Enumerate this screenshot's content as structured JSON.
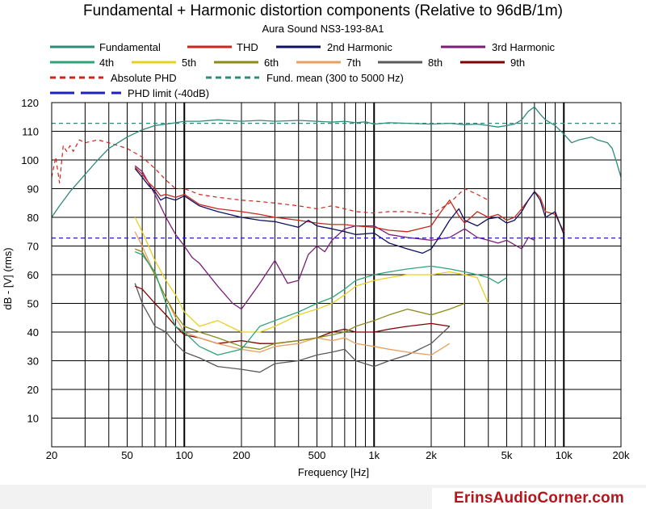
{
  "chart_data": {
    "type": "line",
    "title": "Fundamental + Harmonic distortion components (Relative to 96dB/1m)",
    "subtitle": "Aura Sound NS3-193-8A1",
    "xlabel": "Frequency [Hz]",
    "ylabel": "dB - [V]  (rms)",
    "x_scale": "log",
    "xlim": [
      20,
      20000
    ],
    "ylim": [
      0,
      120
    ],
    "x_ticks": [
      {
        "value": 20,
        "label": "20"
      },
      {
        "value": 50,
        "label": "50"
      },
      {
        "value": 100,
        "label": "100"
      },
      {
        "value": 200,
        "label": "200"
      },
      {
        "value": 500,
        "label": "500"
      },
      {
        "value": 1000,
        "label": "1k"
      },
      {
        "value": 2000,
        "label": "2k"
      },
      {
        "value": 5000,
        "label": "5k"
      },
      {
        "value": 10000,
        "label": "10k"
      },
      {
        "value": 20000,
        "label": "20k"
      }
    ],
    "y_ticks": [
      {
        "value": 10,
        "label": "10"
      },
      {
        "value": 20,
        "label": "20"
      },
      {
        "value": 30,
        "label": "30"
      },
      {
        "value": 40,
        "label": "40"
      },
      {
        "value": 50,
        "label": "50"
      },
      {
        "value": 60,
        "label": "60"
      },
      {
        "value": 70,
        "label": "70"
      },
      {
        "value": 80,
        "label": "80"
      },
      {
        "value": 90,
        "label": "90"
      },
      {
        "value": 100,
        "label": "100"
      },
      {
        "value": 110,
        "label": "110"
      },
      {
        "value": 120,
        "label": "120"
      }
    ],
    "grid": true,
    "legend_placement": "top",
    "series": [
      {
        "name": "Fundamental",
        "color": "#2e8b7a",
        "dash": "solid",
        "x": [
          20,
          22,
          25,
          30,
          35,
          40,
          50,
          60,
          70,
          80,
          90,
          100,
          120,
          150,
          200,
          250,
          300,
          400,
          500,
          600,
          700,
          800,
          900,
          1000,
          1200,
          1500,
          2000,
          2500,
          3000,
          3500,
          4000,
          4500,
          5000,
          5500,
          6000,
          6500,
          7000,
          7500,
          8000,
          9000,
          10000,
          11000,
          12000,
          13000,
          14000,
          15000,
          16000,
          17000,
          18000,
          19000,
          20000
        ],
        "y": [
          80,
          84,
          89,
          95,
          100,
          104,
          108,
          110.5,
          112,
          112.5,
          113,
          113.5,
          113.5,
          114,
          113.5,
          113.8,
          113.5,
          113.8,
          113.5,
          113.2,
          113.5,
          113,
          113.3,
          112.5,
          113,
          112.8,
          112.5,
          112.8,
          112.3,
          112.5,
          112,
          111.5,
          112,
          112.5,
          114,
          117,
          118.5,
          116,
          114,
          112,
          109,
          106,
          107,
          107.5,
          108,
          107,
          106.5,
          106,
          104,
          99,
          94
        ]
      },
      {
        "name": "THD",
        "color": "#c8281e",
        "dash": "solid",
        "x": [
          55,
          60,
          65,
          70,
          75,
          80,
          90,
          100,
          120,
          150,
          200,
          250,
          300,
          400,
          500,
          600,
          700,
          800,
          1000,
          1200,
          1500,
          2000,
          2200,
          2500,
          2800,
          3000,
          3500,
          4000,
          4500,
          5000,
          5500,
          6000,
          6500,
          7000,
          7500,
          8000,
          9000,
          10000
        ],
        "y": [
          97.5,
          95,
          92,
          90,
          87.5,
          88,
          87,
          88,
          84.5,
          83,
          82,
          81,
          80,
          79,
          78,
          77.5,
          77.5,
          77,
          76.5,
          75.5,
          75,
          77,
          81,
          86,
          80.5,
          78,
          82,
          80,
          81,
          79,
          80,
          83,
          86,
          89,
          87,
          82,
          81,
          75
        ]
      },
      {
        "name": "2nd Harmonic",
        "color": "#101060",
        "dash": "solid",
        "x": [
          55,
          60,
          65,
          70,
          75,
          80,
          90,
          100,
          120,
          150,
          200,
          250,
          300,
          400,
          450,
          500,
          600,
          700,
          800,
          1000,
          1200,
          1500,
          1800,
          2000,
          2200,
          2500,
          2800,
          3000,
          3500,
          4000,
          4500,
          5000,
          5500,
          6000,
          6500,
          7000,
          7500,
          8000,
          9000,
          10000
        ],
        "y": [
          97,
          94,
          91,
          89,
          86,
          87,
          86,
          87.5,
          84,
          82,
          80,
          79,
          78.5,
          76.5,
          79,
          77,
          76,
          75,
          74,
          74.5,
          71,
          69,
          67.5,
          69,
          73,
          79,
          83,
          79,
          77,
          79.5,
          80,
          78,
          79,
          82,
          86,
          89,
          86,
          80,
          82,
          74
        ]
      },
      {
        "name": "3rd Harmonic",
        "color": "#7a1e7a",
        "dash": "solid",
        "x": [
          55,
          60,
          70,
          80,
          90,
          100,
          110,
          120,
          150,
          180,
          200,
          250,
          300,
          350,
          400,
          450,
          500,
          550,
          600,
          700,
          800,
          900,
          1000,
          1200,
          1500,
          2000,
          2500,
          3000,
          3500,
          4000,
          4500,
          5000,
          6000,
          6500,
          7000
        ],
        "y": [
          98,
          96,
          88,
          80,
          74,
          70,
          66,
          64,
          56,
          50,
          48,
          57,
          65,
          57,
          58,
          67,
          70,
          68,
          72,
          76,
          77,
          77,
          77,
          74,
          73,
          72,
          73,
          76,
          73,
          72,
          71,
          72,
          69,
          73,
          72
        ]
      },
      {
        "name": "4th",
        "color": "#2fa37a",
        "dash": "solid",
        "x": [
          55,
          60,
          70,
          80,
          90,
          100,
          120,
          150,
          200,
          250,
          300,
          400,
          500,
          600,
          700,
          800,
          1000,
          1200,
          1500,
          2000,
          2500,
          3000,
          3500,
          4000,
          4500,
          5000
        ],
        "y": [
          68,
          67,
          61,
          50,
          42,
          40,
          35,
          32,
          34,
          42,
          44,
          47,
          50,
          52,
          55,
          58,
          60,
          61,
          62,
          63,
          62,
          61,
          60,
          59,
          57,
          59
        ]
      },
      {
        "name": "5th",
        "color": "#e8d020",
        "dash": "solid",
        "x": [
          55,
          60,
          70,
          80,
          90,
          100,
          120,
          150,
          200,
          250,
          300,
          400,
          500,
          600,
          700,
          800,
          1000,
          1200,
          1500,
          2000,
          2500,
          3000,
          3500,
          4000
        ],
        "y": [
          80,
          75,
          65,
          58,
          53,
          47,
          42,
          44,
          40,
          40,
          42,
          46,
          48,
          50,
          53,
          56,
          58,
          59,
          60,
          60,
          61,
          60,
          59,
          50
        ]
      },
      {
        "name": "6th",
        "color": "#8b8b1a",
        "dash": "solid",
        "x": [
          55,
          60,
          70,
          80,
          90,
          100,
          120,
          150,
          200,
          250,
          300,
          400,
          500,
          600,
          700,
          800,
          1000,
          1200,
          1500,
          2000,
          2500,
          3000
        ],
        "y": [
          69,
          68,
          60,
          52,
          46,
          42,
          40,
          38,
          35,
          34,
          36,
          37,
          38,
          39,
          40,
          42,
          44,
          46,
          48,
          46,
          48,
          50
        ]
      },
      {
        "name": "7th",
        "color": "#e8a060",
        "dash": "solid",
        "x": [
          55,
          60,
          70,
          80,
          90,
          100,
          120,
          150,
          200,
          250,
          300,
          400,
          500,
          600,
          700,
          800,
          1000,
          1200,
          1500,
          2000,
          2500
        ],
        "y": [
          75,
          70,
          60,
          52,
          45,
          40,
          38,
          36,
          34,
          33,
          35,
          36,
          38,
          37,
          38,
          36,
          35,
          34,
          33,
          32,
          36
        ]
      },
      {
        "name": "8th",
        "color": "#5a5a5a",
        "dash": "solid",
        "x": [
          55,
          60,
          70,
          80,
          90,
          100,
          120,
          150,
          200,
          250,
          300,
          400,
          500,
          600,
          700,
          800,
          1000,
          1200,
          1500,
          2000,
          2500
        ],
        "y": [
          57,
          50,
          42,
          40,
          36,
          33,
          31,
          28,
          27,
          26,
          29,
          30,
          32,
          33,
          34,
          30,
          28,
          30,
          32,
          36,
          42
        ]
      },
      {
        "name": "9th",
        "color": "#800000",
        "dash": "solid",
        "x": [
          55,
          60,
          70,
          80,
          90,
          100,
          120,
          150,
          200,
          250,
          300,
          400,
          500,
          600,
          700,
          800,
          1000,
          1200,
          1500,
          2000,
          2500
        ],
        "y": [
          56,
          55,
          50,
          46,
          42,
          39,
          38,
          36,
          37,
          36,
          36,
          37,
          38,
          40,
          41,
          40,
          40,
          41,
          42,
          43,
          42
        ]
      },
      {
        "name": "Absolute PHD",
        "color": "#c8281e",
        "dash": "dashed",
        "x": [
          20,
          21,
          22,
          23,
          24,
          25,
          26,
          28,
          30,
          35,
          40,
          50,
          60,
          70,
          80,
          90,
          100,
          120,
          150,
          200,
          250,
          300,
          400,
          500,
          600,
          700,
          800,
          1000,
          1200,
          1500,
          2000,
          2500,
          3000,
          3500,
          4000
        ],
        "y": [
          94,
          101,
          92,
          105,
          103,
          105,
          103,
          107,
          106,
          107,
          106,
          104,
          101,
          97,
          93,
          90,
          90,
          88,
          87,
          86,
          85.5,
          85,
          84,
          83,
          84,
          83,
          82,
          81.5,
          82,
          82,
          81,
          85,
          90,
          88,
          86
        ]
      },
      {
        "name": "Fund. mean (300 to 5000 Hz)",
        "color": "#2e8b7a",
        "dash": "dashed",
        "x": [
          20,
          20000
        ],
        "y": [
          112.8,
          112.8
        ]
      },
      {
        "name": "PHD limit (-40dB)",
        "color": "#2020c0",
        "dash": "dashed",
        "x": [
          20,
          20000
        ],
        "y": [
          72.8,
          72.8
        ]
      }
    ]
  },
  "footer": {
    "brand": "ErinsAudioCorner.com",
    "brand_color": "#b3161d"
  }
}
